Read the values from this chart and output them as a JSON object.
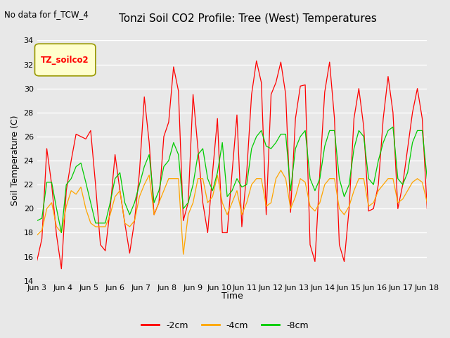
{
  "title": "Tonzi Soil CO2 Profile: Tree (West) Temperatures",
  "subtitle": "No data for f_TCW_4",
  "ylabel": "Soil Temperature (C)",
  "xlabel": "Time",
  "legend_label": "TZ_soilco2",
  "ylim": [
    14,
    34
  ],
  "yticks": [
    14,
    16,
    18,
    20,
    22,
    24,
    26,
    28,
    30,
    32,
    34
  ],
  "xtick_labels": [
    "Jun 3",
    "Jun 4",
    "Jun 5",
    "Jun 6",
    "Jun 7",
    "Jun 8",
    "Jun 9",
    "Jun 10",
    "Jun 11",
    "Jun 12",
    "Jun 13",
    "Jun 14",
    "Jun 15",
    "Jun 16",
    "Jun 17",
    "Jun 18"
  ],
  "bg_color": "#e8e8e8",
  "plot_bg_color": "#e8e8e8",
  "grid_color": "#ffffff",
  "line_colors": {
    "2cm": "#ff0000",
    "4cm": "#ffa500",
    "8cm": "#00cc00"
  },
  "series_2cm": [
    15.7,
    17.5,
    25.0,
    22.0,
    17.8,
    15.0,
    21.5,
    24.0,
    26.2,
    26.0,
    25.8,
    26.5,
    22.0,
    17.0,
    16.5,
    20.0,
    24.5,
    21.5,
    18.8,
    16.3,
    19.0,
    23.0,
    29.3,
    25.5,
    19.5,
    20.5,
    26.0,
    27.2,
    31.8,
    29.8,
    19.0,
    20.5,
    29.5,
    25.0,
    20.5,
    18.0,
    23.0,
    27.5,
    18.0,
    18.0,
    23.0,
    27.8,
    18.5,
    23.0,
    29.5,
    32.3,
    30.5,
    19.5,
    29.5,
    30.5,
    32.2,
    29.5,
    19.7,
    27.5,
    30.2,
    30.3,
    17.0,
    15.6,
    23.0,
    29.7,
    32.2,
    27.5,
    17.0,
    15.6,
    20.0,
    27.5,
    30.0,
    26.8,
    19.8,
    20.0,
    22.0,
    27.5,
    31.0,
    28.0,
    20.0,
    22.0,
    25.0,
    28.0,
    30.0,
    27.5,
    20.0
  ],
  "series_4cm": [
    17.8,
    18.2,
    20.0,
    20.5,
    18.5,
    18.0,
    20.2,
    21.5,
    21.2,
    21.8,
    20.0,
    18.8,
    18.5,
    18.5,
    18.5,
    19.5,
    21.0,
    21.5,
    18.8,
    18.5,
    19.0,
    21.0,
    22.0,
    22.8,
    19.5,
    20.5,
    21.5,
    22.5,
    22.5,
    22.5,
    16.2,
    19.5,
    20.5,
    22.5,
    22.5,
    20.5,
    21.0,
    22.8,
    20.5,
    19.5,
    20.5,
    21.5,
    19.5,
    20.5,
    22.0,
    22.5,
    22.5,
    20.2,
    20.5,
    22.5,
    23.2,
    22.5,
    20.0,
    21.0,
    22.5,
    22.2,
    20.2,
    19.8,
    20.5,
    22.0,
    22.5,
    22.5,
    20.0,
    19.5,
    20.2,
    21.5,
    22.5,
    22.5,
    20.2,
    20.5,
    21.5,
    22.0,
    22.5,
    22.5,
    20.5,
    20.8,
    21.5,
    22.2,
    22.5,
    22.2,
    20.5
  ],
  "series_8cm": [
    19.0,
    19.2,
    22.2,
    22.2,
    20.0,
    18.0,
    22.0,
    22.5,
    23.5,
    23.8,
    22.2,
    20.5,
    18.8,
    18.8,
    18.8,
    20.5,
    22.5,
    23.0,
    20.5,
    19.5,
    20.5,
    22.0,
    23.5,
    24.5,
    20.5,
    21.5,
    23.5,
    24.0,
    25.5,
    24.5,
    20.0,
    20.5,
    22.0,
    24.5,
    25.0,
    22.5,
    21.5,
    23.0,
    25.5,
    21.0,
    21.5,
    22.5,
    21.8,
    22.0,
    25.0,
    26.0,
    26.5,
    25.2,
    25.0,
    25.5,
    26.2,
    26.2,
    21.5,
    25.0,
    26.0,
    26.5,
    22.5,
    21.5,
    22.5,
    25.2,
    26.5,
    26.5,
    22.5,
    21.0,
    22.0,
    25.0,
    26.5,
    26.0,
    22.5,
    22.0,
    24.0,
    25.5,
    26.5,
    26.8,
    22.5,
    22.0,
    23.0,
    25.5,
    26.5,
    26.5,
    22.5
  ]
}
